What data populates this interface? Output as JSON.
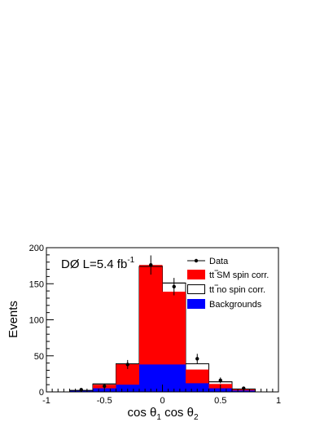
{
  "chart_data": {
    "type": "histogram",
    "experiment_label": {
      "main": "DØ L=5.4 fb",
      "superscript": "-1"
    },
    "xlabel": {
      "parts": [
        "cos θ",
        "1",
        " cos θ",
        "2"
      ]
    },
    "ylabel": "Events",
    "xlim": [
      -1,
      1
    ],
    "ylim": [
      0,
      200
    ],
    "x_ticks": [
      -1,
      -0.5,
      0,
      0.5,
      1
    ],
    "x_tick_labels": [
      "-1",
      "-0.5",
      "0",
      "0.5",
      "1"
    ],
    "y_ticks": [
      0,
      50,
      100,
      150,
      200
    ],
    "y_tick_labels": [
      "0",
      "50",
      "100",
      "150",
      "200"
    ],
    "bin_edges": [
      -1.0,
      -0.8,
      -0.6,
      -0.4,
      -0.2,
      0.0,
      0.2,
      0.4,
      0.6,
      0.8,
      1.0
    ],
    "series": [
      {
        "name": "t t̄ SM spin corr.",
        "style": "filled",
        "color": "#ff0000",
        "values": [
          0,
          2,
          10,
          39,
          176,
          139,
          31,
          11,
          4,
          0
        ]
      },
      {
        "name": "t t̄ no spin corr.",
        "style": "outline",
        "color": "#000000",
        "values": [
          0,
          2,
          11,
          39,
          174,
          151,
          39,
          14,
          4,
          0
        ]
      },
      {
        "name": "Backgrounds",
        "style": "filled",
        "color": "#0000ff",
        "values": [
          0,
          2,
          5,
          10,
          38,
          38,
          12,
          5,
          2,
          0
        ]
      }
    ],
    "data_points": {
      "name": "Data",
      "x": [
        -0.7,
        -0.5,
        -0.3,
        -0.1,
        0.1,
        0.3,
        0.5,
        0.7
      ],
      "y": [
        3,
        8,
        38,
        176,
        146,
        46,
        16,
        5
      ],
      "err": [
        1.7,
        2.8,
        6.2,
        13.3,
        12.1,
        6.8,
        4.0,
        2.2
      ]
    },
    "legend_order": [
      "Data",
      "t t̄ SM spin corr.",
      "t t̄ no spin corr.",
      "Backgrounds"
    ],
    "legend": {
      "position": "top-right",
      "items": [
        {
          "label": "Data",
          "type": "marker"
        },
        {
          "label_main": "tt",
          "label_rest": " SM spin corr.",
          "type": "fill",
          "color": "#ff0000"
        },
        {
          "label_main": "tt",
          "label_rest": " no spin corr.",
          "type": "outline",
          "color": "#000000"
        },
        {
          "label": "Backgrounds",
          "type": "fill",
          "color": "#0000ff"
        }
      ]
    },
    "grid": false
  }
}
